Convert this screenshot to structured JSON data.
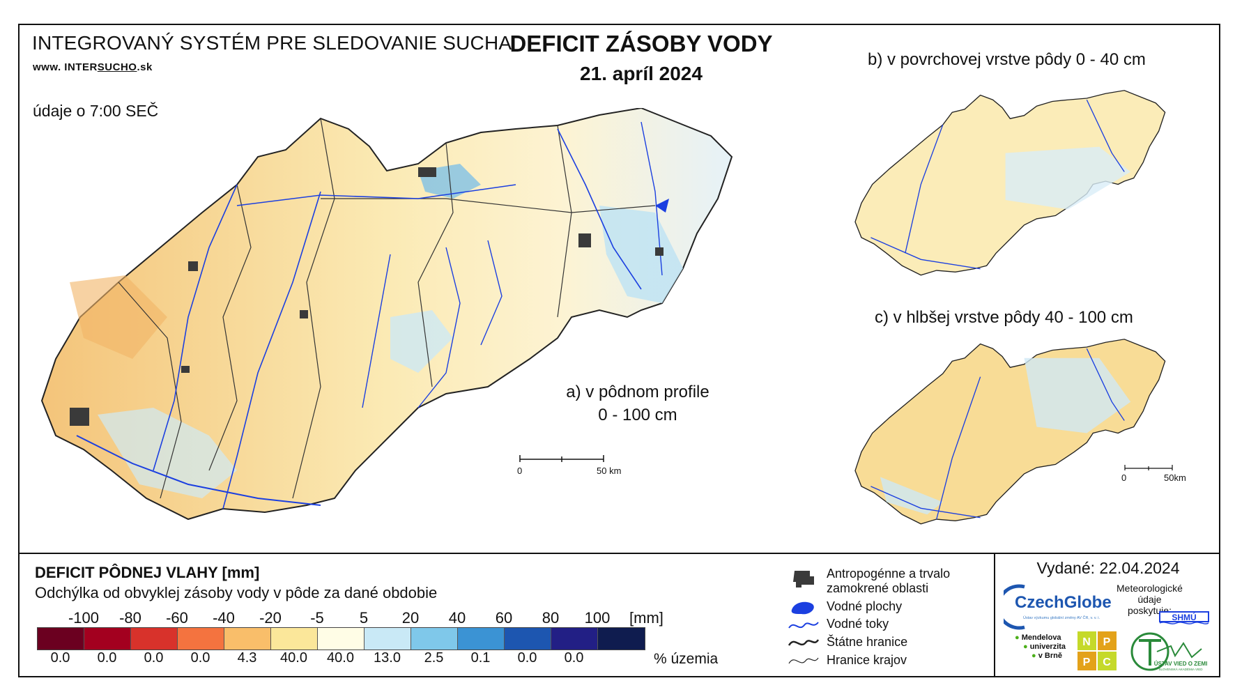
{
  "header": {
    "system_title": "INTEGROVANÝ SYSTÉM PRE SLEDOVANIE SUCHA",
    "website_prefix": "www. INTER",
    "website_underlined": "SUCHO",
    "website_suffix": ".sk",
    "time_note": "údaje o 7:00 SEČ",
    "map_title": "DEFICIT ZÁSOBY VODY",
    "map_date": "21. apríl 2024"
  },
  "maps": {
    "a_line1": "a) v pôdnom profile",
    "a_line2": "0 - 100 cm",
    "b_label": "b) v povrchovej vrstve pôdy 0 - 40 cm",
    "c_label": "c) v hlbšej vrstve pôdy 40 - 100 cm",
    "scale_main_zero": "0",
    "scale_main_end": "50 km",
    "scale_small_zero": "0",
    "scale_small_end": "50km"
  },
  "legend": {
    "title": "DEFICIT PÔDNEJ VLAHY [mm]",
    "subtitle": "Odchýlka od obvyklej zásoby vody v pôde za dané obdobie",
    "unit_mm": "[mm]",
    "unit_pct": "% územia",
    "thresholds": [
      "-100",
      "-80",
      "-60",
      "-40",
      "-20",
      "-5",
      "5",
      "20",
      "40",
      "60",
      "80",
      "100"
    ],
    "classes": [
      {
        "color": "#6b0020",
        "percent": "0.0"
      },
      {
        "color": "#a3001f",
        "percent": "0.0"
      },
      {
        "color": "#d8322b",
        "percent": "0.0"
      },
      {
        "color": "#f4733f",
        "percent": "0.0"
      },
      {
        "color": "#f9be6a",
        "percent": "4.3"
      },
      {
        "color": "#fbe79a",
        "percent": "40.0"
      },
      {
        "color": "#fffde6",
        "percent": "40.0"
      },
      {
        "color": "#c9e9f6",
        "percent": "13.0"
      },
      {
        "color": "#7fc8ea",
        "percent": "2.5"
      },
      {
        "color": "#3b93d4",
        "percent": "0.1"
      },
      {
        "color": "#1d56b0",
        "percent": "0.0"
      },
      {
        "color": "#221f85",
        "percent": "0.0"
      },
      {
        "color": "#0f1c4f",
        "percent": ""
      }
    ]
  },
  "symbols": {
    "items": [
      {
        "icon": "urban-area-icon",
        "label1": "Antropogénne a trvalo",
        "label2": "zamokrené oblasti"
      },
      {
        "icon": "water-body-icon",
        "label1": "Vodné plochy",
        "label2": ""
      },
      {
        "icon": "river-icon",
        "label1": "Vodné toky",
        "label2": ""
      },
      {
        "icon": "state-border-icon",
        "label1": "Štátne hranice",
        "label2": ""
      },
      {
        "icon": "region-border-icon",
        "label1": "Hranice krajov",
        "label2": ""
      }
    ]
  },
  "footer": {
    "issued": "Vydané: 22.04.2024",
    "czechglobe": "CzechGlobe",
    "czechglobe_sub": "Ústav výzkumu globální změny AV ČR, v. v. i.",
    "meteo_line1": "Meteorologické",
    "meteo_line2": "údaje",
    "meteo_line3": "poskytuje:",
    "shmu": "SHMÚ",
    "mendel_line1": "Mendelova",
    "mendel_line2": "univerzita",
    "mendel_line3": "v Brně",
    "nppc": [
      "N",
      "P",
      "P",
      "C"
    ],
    "uvz": "ÚSTAV VIED O ZEMI",
    "uvz_sub": "SLOVENSKÁ AKADÉMIA VIED"
  },
  "colors": {
    "river": "#1b3fe0",
    "urban": "#3a3a3a",
    "border": "#222222"
  }
}
